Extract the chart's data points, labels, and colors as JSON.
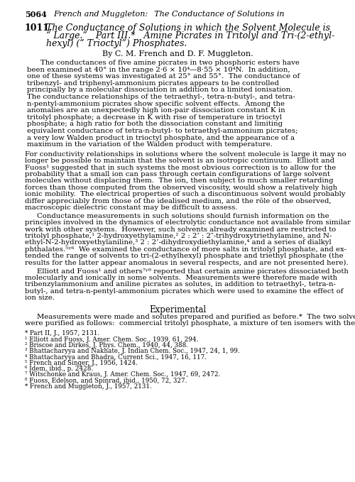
{
  "background_color": "#ffffff",
  "page_number": "5064",
  "header_text": "French and Muggleton:  The Conductance of Solutions in",
  "article_number": "1011.",
  "title_line1": "The Conductance of Solutions in which the Solvent Molecule is",
  "title_line2": "“ Large.”   Part III.*   Amine Picrates in Tritolyl and Tri-(2-ethyl-",
  "title_line3": "hexyl) (“ Trioctyl”) Phosphates.",
  "byline": "By C. M. French and D. F. Muggleton.",
  "abstract_lines": [
    "The conductances of five amine picrates in two phosphoric esters have",
    "been examined at 40° in the range 2·6 × 10⁴—8·55 × 10⁴N.  In addition,",
    "one of these systems was investigated at 25° and 55°.  The conductance of",
    "tribenzyl- and triphenyl-ammonium picrates appears to be controlled",
    "principally by a molecular dissociation in addition to a limited ionisation.",
    "The conductance relationships of the tetraethyl-, tetra-n-butyl-, and tetra-",
    "n-pentyl-ammonium picrates show specific solvent effects.  Among the",
    "anomalies are an unexpectedly high ion-pair dissociation constant K in",
    "tritolyl phosphate; a decrease in K with rise of temperature in trioctyl",
    "phosphate; a high ratio for both the dissociation constant and limiting",
    "equivalent conductance of tetra-n-butyl- to tetraethyl-ammonium picrates;",
    "a very low Walden product in trioctyl phosphate, and the appearance of a",
    "maximum in the variation of the Walden product with temperature."
  ],
  "body1_lines": [
    "For conductivity relationships in solutions where the solvent molecule is large it may no",
    "longer be possible to maintain that the solvent is an isotropic continuum.  Elliott and",
    "Fuoss¹ suggested that in such systems the most obvious correction is to allow for the",
    "probability that a small ion can pass through certain configurations of large solvent",
    "molecules without displacing them.  The ion, then subject to much smaller retarding",
    "forces than those computed from the observed viscosity, would show a relatively high",
    "ionic mobility.  The electrical properties of such a discontinuous solvent would probably",
    "differ appreciably from those of the idealised medium, and the rôle of the observed,",
    "macroscopic dielectric constant may be difficult to assess."
  ],
  "body2_lines": [
    "Conductance measurements in such solutions should furnish information on the",
    "principles involved in the dynamics of electrolytic conductance not available from similar",
    "work with other systems.  However, such solvents already examined are restricted to",
    "tritolyl phosphate,¹ 2-hydroxyethylamine,² 2 : 2’ : 2″-trihydroxytriethylamine, and N-",
    "ethyl-N-2-hydroxyethylaniline,³ 2 : 2’-dihydroxydiethylamine,⁴ and a series of dialkyl",
    "phthalates.⁵ʸ⁶  We examined the conductance of more salts in tritolyl phosphate, and ex-",
    "tended the range of solvents to tri-(2-ethylhexyl) phosphate and triethyl phosphate (the",
    "results for the latter appear anomalous in several respects, and are not presented here)."
  ],
  "body3_lines": [
    "Elliott and Fuoss¹ and others⁷ʸ⁸ reported that certain amine picrates dissociated both",
    "molecularly and ionically in some solvents.  Measurements were therefore made with",
    "tribenzylammonium and aniline picrates as solutes, in addition to tetraethyl-, tetra-n-",
    "butyl-, and tetra-n-pentyl-ammonium picrates which were used to examine the effect of",
    "ion size."
  ],
  "experimental_header": "Experimental",
  "exp_lines": [
    "Measurements were made and solutes prepared and purified as before.*  The two solvents",
    "were purified as follows:  commercial tritolyl phosphate, a mixture of ten isomers with the"
  ],
  "footnotes": [
    "* Part II, J., 1957, 2131.",
    "¹ Elliott and Fuoss, J. Amer. Chem. Soc., 1939, 61, 294.",
    "² Briscoe and Dirkes, J. Phys. Chem., 1940, 44, 388.",
    "³ Bhattacharyya and Nakhate, J. Indian Chem. Soc., 1947, 24, 1, 99.",
    "⁴ Bhattacharyya and Bhadra, Current Sci., 1947, 16, 117.",
    "⁵ French and Singer, J., 1956, 1424.",
    "⁶ Idem, ibid., p. 2428.",
    "⁷ Witschonke and Kraus, J. Amer. Chem. Soc., 1947, 69, 2472.",
    "⁸ Fuoss, Edelson, and Spinrad, ibid., 1950, 72, 327.",
    "* French and Muggleton, J., 1957, 2131."
  ]
}
